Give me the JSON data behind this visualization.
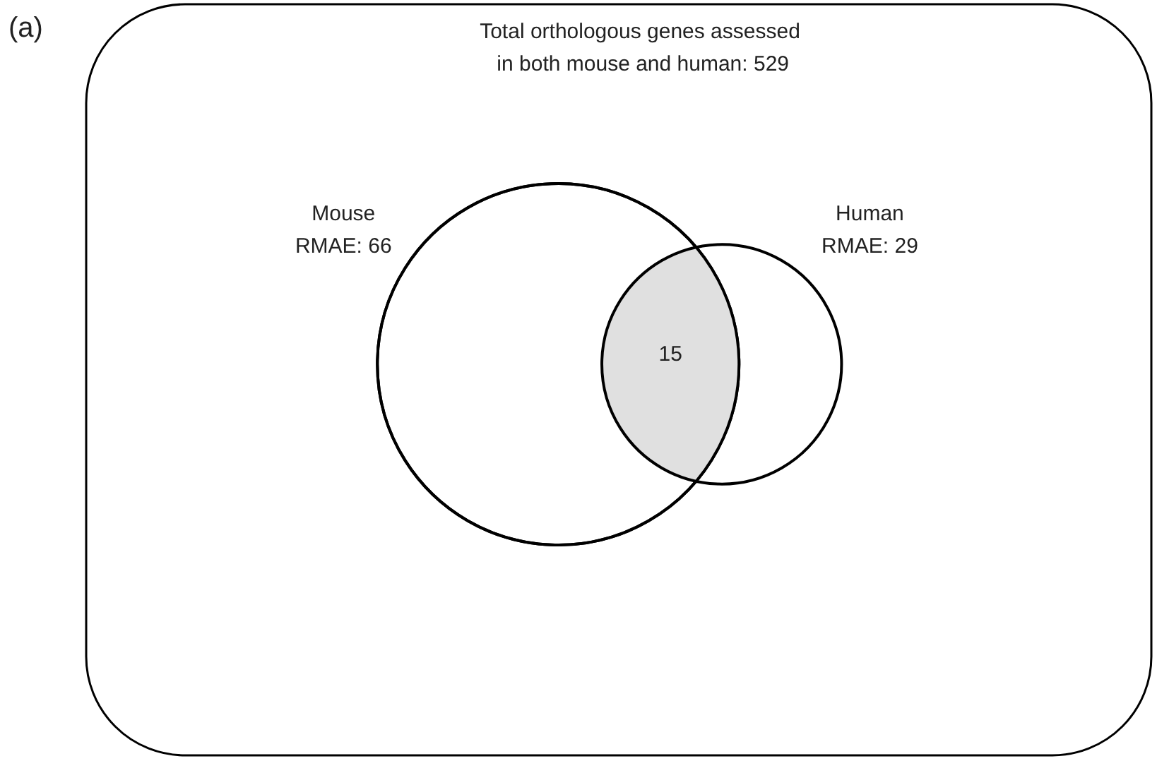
{
  "chart_data": {
    "type": "other",
    "title": "Total orthologous genes assessed\n in both mouse and human: 529",
    "annotations": [
      "(a)"
    ],
    "categories": [
      "Mouse",
      "Human",
      null
    ],
    "values": [
      66,
      29,
      15
    ],
    "value_labels": [
      "RMAE: 66",
      "RMAE: 29",
      "15"
    ],
    "colors": [
      "#ffffff",
      "#ffffff",
      "#e0e0e0"
    ]
  }
}
